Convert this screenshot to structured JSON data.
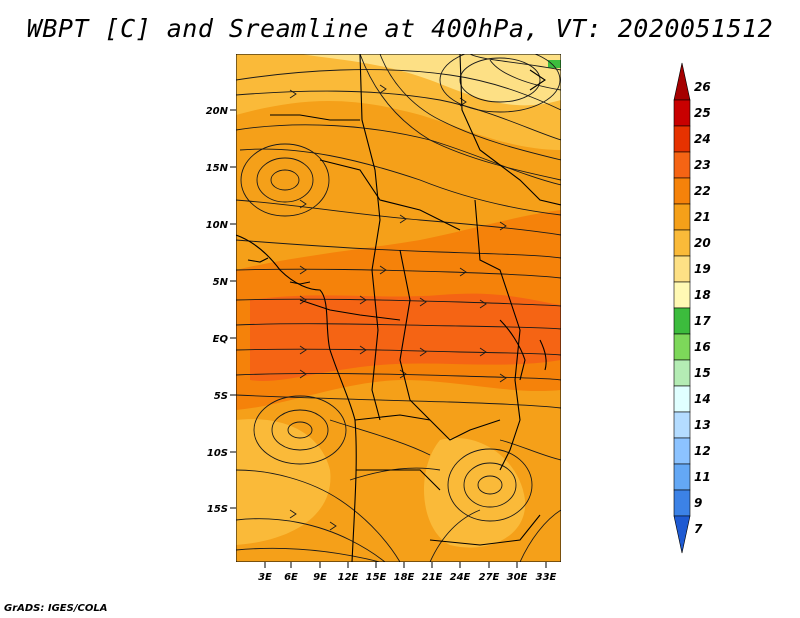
{
  "title": "WBPT [C] and Sreamline at 400hPa, VT: 2020051512",
  "credit": "GrADS: IGES/COLA",
  "map": {
    "lat_labels": [
      "20N",
      "15N",
      "10N",
      "5N",
      "EQ",
      "5S",
      "10S",
      "15S"
    ],
    "lon_labels": [
      "3E",
      "6E",
      "9E",
      "12E",
      "15E",
      "18E",
      "21E",
      "24E",
      "27E",
      "30E",
      "33E"
    ],
    "lat_values": [
      20,
      15,
      10,
      5,
      0,
      -5,
      -10,
      -15
    ],
    "lon_values": [
      3,
      6,
      9,
      12,
      15,
      18,
      21,
      24,
      27,
      30,
      33
    ],
    "lon_range": [
      0,
      34
    ],
    "lat_range": [
      -20,
      25
    ]
  },
  "colorbar": {
    "labels": [
      "26",
      "25",
      "24",
      "23",
      "22",
      "21",
      "20",
      "19",
      "18",
      "17",
      "16",
      "15",
      "14",
      "13",
      "12",
      "11",
      "9",
      "7"
    ],
    "colors": [
      "#a50000",
      "#c80000",
      "#e63200",
      "#f56414",
      "#f5820a",
      "#f5a019",
      "#faba39",
      "#fde085",
      "#fff9b4",
      "#3cbc3d",
      "#7dd85a",
      "#b4ecb4",
      "#e0ffff",
      "#b4dcff",
      "#8cc3ff",
      "#64a8f5",
      "#3c82e6",
      "#1e5ad2"
    ]
  }
}
